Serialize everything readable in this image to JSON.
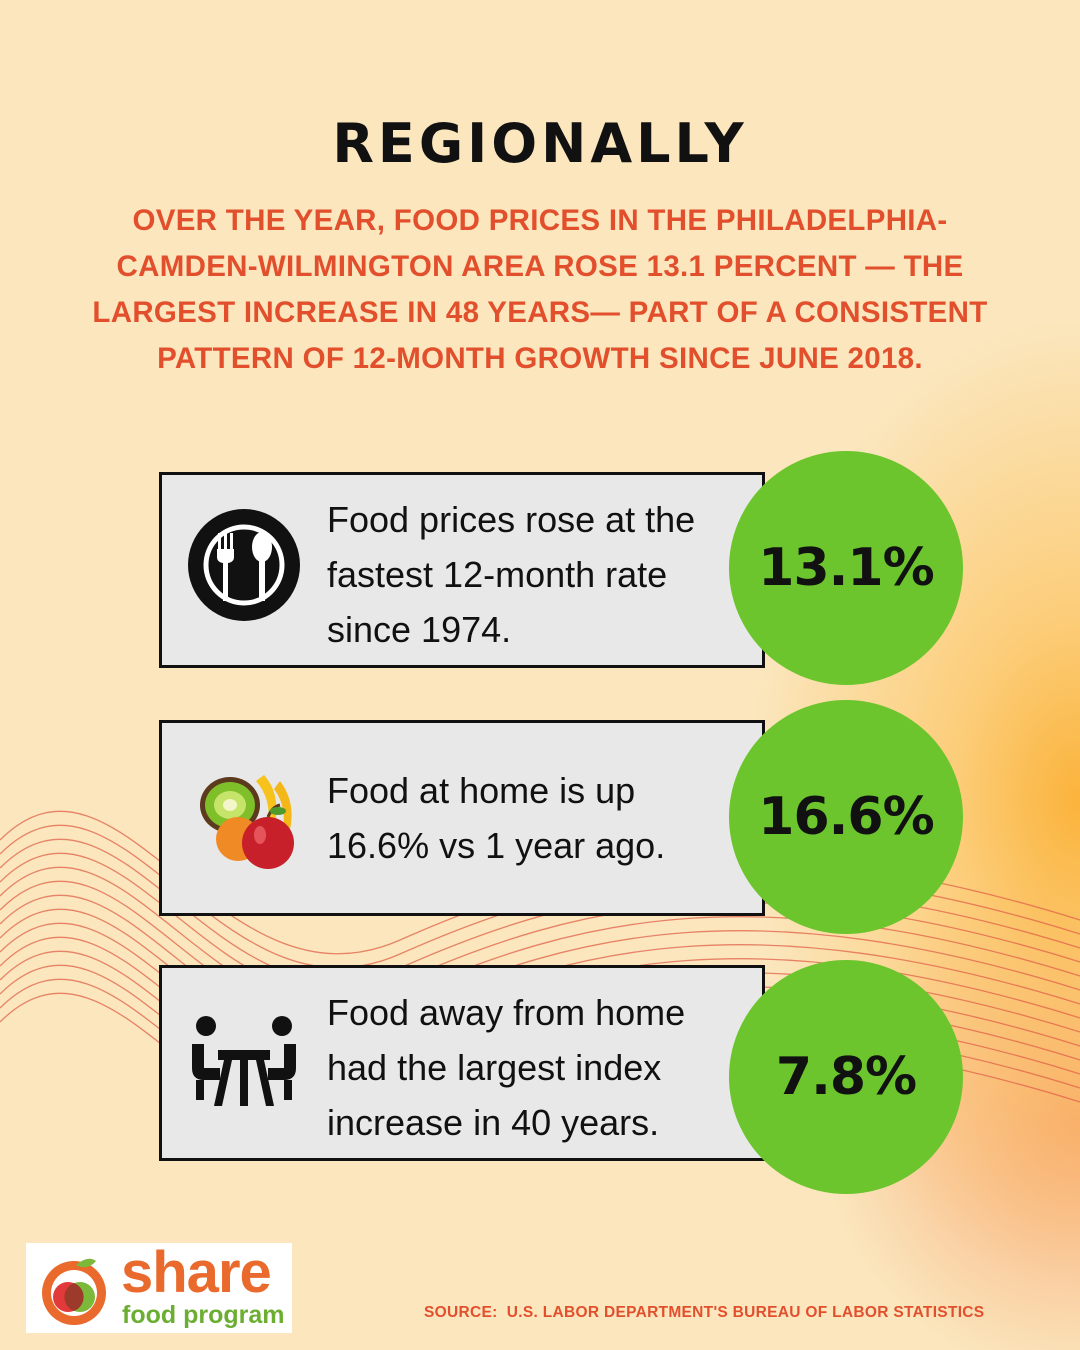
{
  "header": {
    "title": "REGIONALLY",
    "subtitle": "OVER THE YEAR, FOOD PRICES IN THE PHILADELPHIA-CAMDEN-WILMINGTON AREA ROSE 13.1 PERCENT — THE LARGEST INCREASE IN 48 YEARS— PART OF A CONSISTENT PATTERN OF 12-MONTH GROWTH SINCE JUNE 2018."
  },
  "stats": [
    {
      "text": "Food prices rose at the fastest 12-month rate since 1974.",
      "value": "13.1%",
      "icon": "plate-fork-spoon-icon"
    },
    {
      "text": "Food at home is up 16.6% vs 1 year ago.",
      "value": "16.6%",
      "icon": "fruit-icon"
    },
    {
      "text": "Food away from home had the largest index increase in 40 years.",
      "value": "7.8%",
      "icon": "dining-table-icon"
    }
  ],
  "logo": {
    "word": "share",
    "sub": "food program"
  },
  "footer": {
    "source": "SOURCE:  U.S. LABOR DEPARTMENT'S BUREAU OF LABOR STATISTICS"
  },
  "colors": {
    "background": "#fbe6bd",
    "accent_red": "#e24f2d",
    "circle_green": "#6cc52d",
    "card_gray": "#e8e8e8",
    "logo_orange": "#e96a2c",
    "logo_green": "#6cae32"
  }
}
